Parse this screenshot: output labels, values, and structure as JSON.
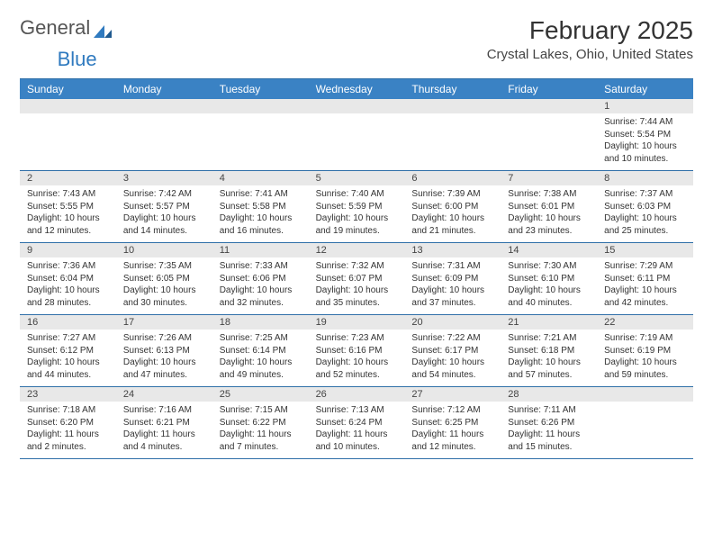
{
  "logo": {
    "text1": "General",
    "text2": "Blue"
  },
  "title": "February 2025",
  "location": "Crystal Lakes, Ohio, United States",
  "colors": {
    "header_bg": "#3a82c4",
    "header_text": "#ffffff",
    "daynum_bg": "#e8e8e8",
    "border": "#2f6fa8",
    "text": "#333333"
  },
  "day_names": [
    "Sunday",
    "Monday",
    "Tuesday",
    "Wednesday",
    "Thursday",
    "Friday",
    "Saturday"
  ],
  "weeks": [
    {
      "nums": [
        "",
        "",
        "",
        "",
        "",
        "",
        "1"
      ],
      "cells": [
        null,
        null,
        null,
        null,
        null,
        null,
        {
          "sunrise": "Sunrise: 7:44 AM",
          "sunset": "Sunset: 5:54 PM",
          "daylight": "Daylight: 10 hours and 10 minutes."
        }
      ]
    },
    {
      "nums": [
        "2",
        "3",
        "4",
        "5",
        "6",
        "7",
        "8"
      ],
      "cells": [
        {
          "sunrise": "Sunrise: 7:43 AM",
          "sunset": "Sunset: 5:55 PM",
          "daylight": "Daylight: 10 hours and 12 minutes."
        },
        {
          "sunrise": "Sunrise: 7:42 AM",
          "sunset": "Sunset: 5:57 PM",
          "daylight": "Daylight: 10 hours and 14 minutes."
        },
        {
          "sunrise": "Sunrise: 7:41 AM",
          "sunset": "Sunset: 5:58 PM",
          "daylight": "Daylight: 10 hours and 16 minutes."
        },
        {
          "sunrise": "Sunrise: 7:40 AM",
          "sunset": "Sunset: 5:59 PM",
          "daylight": "Daylight: 10 hours and 19 minutes."
        },
        {
          "sunrise": "Sunrise: 7:39 AM",
          "sunset": "Sunset: 6:00 PM",
          "daylight": "Daylight: 10 hours and 21 minutes."
        },
        {
          "sunrise": "Sunrise: 7:38 AM",
          "sunset": "Sunset: 6:01 PM",
          "daylight": "Daylight: 10 hours and 23 minutes."
        },
        {
          "sunrise": "Sunrise: 7:37 AM",
          "sunset": "Sunset: 6:03 PM",
          "daylight": "Daylight: 10 hours and 25 minutes."
        }
      ]
    },
    {
      "nums": [
        "9",
        "10",
        "11",
        "12",
        "13",
        "14",
        "15"
      ],
      "cells": [
        {
          "sunrise": "Sunrise: 7:36 AM",
          "sunset": "Sunset: 6:04 PM",
          "daylight": "Daylight: 10 hours and 28 minutes."
        },
        {
          "sunrise": "Sunrise: 7:35 AM",
          "sunset": "Sunset: 6:05 PM",
          "daylight": "Daylight: 10 hours and 30 minutes."
        },
        {
          "sunrise": "Sunrise: 7:33 AM",
          "sunset": "Sunset: 6:06 PM",
          "daylight": "Daylight: 10 hours and 32 minutes."
        },
        {
          "sunrise": "Sunrise: 7:32 AM",
          "sunset": "Sunset: 6:07 PM",
          "daylight": "Daylight: 10 hours and 35 minutes."
        },
        {
          "sunrise": "Sunrise: 7:31 AM",
          "sunset": "Sunset: 6:09 PM",
          "daylight": "Daylight: 10 hours and 37 minutes."
        },
        {
          "sunrise": "Sunrise: 7:30 AM",
          "sunset": "Sunset: 6:10 PM",
          "daylight": "Daylight: 10 hours and 40 minutes."
        },
        {
          "sunrise": "Sunrise: 7:29 AM",
          "sunset": "Sunset: 6:11 PM",
          "daylight": "Daylight: 10 hours and 42 minutes."
        }
      ]
    },
    {
      "nums": [
        "16",
        "17",
        "18",
        "19",
        "20",
        "21",
        "22"
      ],
      "cells": [
        {
          "sunrise": "Sunrise: 7:27 AM",
          "sunset": "Sunset: 6:12 PM",
          "daylight": "Daylight: 10 hours and 44 minutes."
        },
        {
          "sunrise": "Sunrise: 7:26 AM",
          "sunset": "Sunset: 6:13 PM",
          "daylight": "Daylight: 10 hours and 47 minutes."
        },
        {
          "sunrise": "Sunrise: 7:25 AM",
          "sunset": "Sunset: 6:14 PM",
          "daylight": "Daylight: 10 hours and 49 minutes."
        },
        {
          "sunrise": "Sunrise: 7:23 AM",
          "sunset": "Sunset: 6:16 PM",
          "daylight": "Daylight: 10 hours and 52 minutes."
        },
        {
          "sunrise": "Sunrise: 7:22 AM",
          "sunset": "Sunset: 6:17 PM",
          "daylight": "Daylight: 10 hours and 54 minutes."
        },
        {
          "sunrise": "Sunrise: 7:21 AM",
          "sunset": "Sunset: 6:18 PM",
          "daylight": "Daylight: 10 hours and 57 minutes."
        },
        {
          "sunrise": "Sunrise: 7:19 AM",
          "sunset": "Sunset: 6:19 PM",
          "daylight": "Daylight: 10 hours and 59 minutes."
        }
      ]
    },
    {
      "nums": [
        "23",
        "24",
        "25",
        "26",
        "27",
        "28",
        ""
      ],
      "cells": [
        {
          "sunrise": "Sunrise: 7:18 AM",
          "sunset": "Sunset: 6:20 PM",
          "daylight": "Daylight: 11 hours and 2 minutes."
        },
        {
          "sunrise": "Sunrise: 7:16 AM",
          "sunset": "Sunset: 6:21 PM",
          "daylight": "Daylight: 11 hours and 4 minutes."
        },
        {
          "sunrise": "Sunrise: 7:15 AM",
          "sunset": "Sunset: 6:22 PM",
          "daylight": "Daylight: 11 hours and 7 minutes."
        },
        {
          "sunrise": "Sunrise: 7:13 AM",
          "sunset": "Sunset: 6:24 PM",
          "daylight": "Daylight: 11 hours and 10 minutes."
        },
        {
          "sunrise": "Sunrise: 7:12 AM",
          "sunset": "Sunset: 6:25 PM",
          "daylight": "Daylight: 11 hours and 12 minutes."
        },
        {
          "sunrise": "Sunrise: 7:11 AM",
          "sunset": "Sunset: 6:26 PM",
          "daylight": "Daylight: 11 hours and 15 minutes."
        },
        null
      ]
    }
  ]
}
